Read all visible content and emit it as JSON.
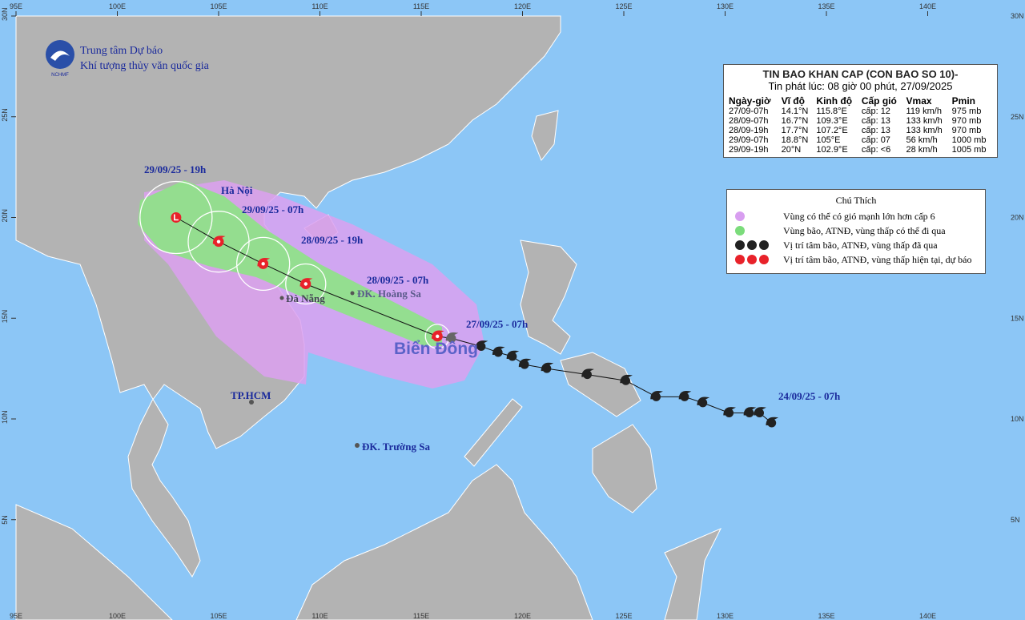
{
  "header": {
    "agency_line1": "Trung tâm Dự báo",
    "agency_line2": "Khí tượng thủy văn quốc gia",
    "logo_text": "NCHMF"
  },
  "bulletin": {
    "title": "TIN BAO KHAN CAP (CON BAO SO 10)-",
    "issued": "Tin phát lúc: 08 giờ 00 phút, 27/09/2025",
    "columns": [
      "Ngày-giờ",
      "Vĩ độ",
      "Kinh độ",
      "Cấp gió",
      "Vmax",
      "Pmin"
    ],
    "rows": [
      [
        "27/09-07h",
        "14.1°N",
        "115.8°E",
        "cấp: 12",
        "119 km/h",
        "975 mb"
      ],
      [
        "28/09-07h",
        "16.7°N",
        "109.3°E",
        "cấp: 13",
        "133 km/h",
        "970 mb"
      ],
      [
        "28/09-19h",
        "17.7°N",
        "107.2°E",
        "cấp: 13",
        "133 km/h",
        "970 mb"
      ],
      [
        "29/09-07h",
        "18.8°N",
        "105°E",
        "cấp: 07",
        "56 km/h",
        "1000 mb"
      ],
      [
        "29/09-19h",
        "20°N",
        "102.9°E",
        "cấp: <6",
        "28 km/h",
        "1005 mb"
      ]
    ]
  },
  "legend": {
    "title": "Chú Thích",
    "items": [
      "Vùng có thể có gió mạnh lớn hơn cấp 6",
      "Vùng bão, ATNĐ, vùng thấp có thể đi qua",
      "Vị trí tâm bão, ATNĐ, vùng thấp đã qua",
      "Vị trí tâm bão, ATNĐ, vùng thấp hiện tại, dự báo"
    ]
  },
  "map": {
    "lon_ticks": [
      {
        "value": 95,
        "label": "95E"
      },
      {
        "value": 100,
        "label": "100E"
      },
      {
        "value": 105,
        "label": "105E"
      },
      {
        "value": 110,
        "label": "110E"
      },
      {
        "value": 115,
        "label": "115E"
      },
      {
        "value": 120,
        "label": "120E"
      },
      {
        "value": 125,
        "label": "125E"
      },
      {
        "value": 130,
        "label": "130E"
      },
      {
        "value": 135,
        "label": "135E"
      },
      {
        "value": 140,
        "label": "140E"
      }
    ],
    "lat_ticks": [
      {
        "value": 30,
        "label": "30N"
      },
      {
        "value": 25,
        "label": "25N"
      },
      {
        "value": 20,
        "label": "20N"
      },
      {
        "value": 15,
        "label": "15N"
      },
      {
        "value": 10,
        "label": "10N"
      },
      {
        "value": 5,
        "label": "5N"
      }
    ],
    "places": [
      "Hà Nội",
      "Đà Nẵng",
      "ĐK. Hoàng Sa",
      "TP.HCM",
      "ĐK. Trường Sa"
    ],
    "sea_label": "Biển Đông",
    "time_labels": [
      "29/09/25 - 19h",
      "29/09/25 - 07h",
      "28/09/25 - 19h",
      "28/09/25 - 07h",
      "27/09/25 - 07h",
      "24/09/25 - 07h"
    ],
    "track": {
      "past": [
        {
          "lon": 132.3,
          "lat": 9.8
        },
        {
          "lon": 131.7,
          "lat": 10.3
        },
        {
          "lon": 131.2,
          "lat": 10.3
        },
        {
          "lon": 130.2,
          "lat": 10.3
        },
        {
          "lon": 128.9,
          "lat": 10.8
        },
        {
          "lon": 128.0,
          "lat": 11.1
        },
        {
          "lon": 126.6,
          "lat": 11.1
        },
        {
          "lon": 125.1,
          "lat": 11.9
        },
        {
          "lon": 123.2,
          "lat": 12.2
        },
        {
          "lon": 121.2,
          "lat": 12.5
        },
        {
          "lon": 120.1,
          "lat": 12.7
        },
        {
          "lon": 119.5,
          "lat": 13.1
        },
        {
          "lon": 118.8,
          "lat": 13.3
        },
        {
          "lon": 117.96,
          "lat": 13.6
        },
        {
          "lon": 116.5,
          "lat": 14.0
        }
      ],
      "forecast": [
        {
          "lon": 115.8,
          "lat": 14.1
        },
        {
          "lon": 109.3,
          "lat": 16.7
        },
        {
          "lon": 107.2,
          "lat": 17.7
        },
        {
          "lon": 105,
          "lat": 18.8
        },
        {
          "lon": 102.9,
          "lat": 20
        }
      ]
    }
  }
}
